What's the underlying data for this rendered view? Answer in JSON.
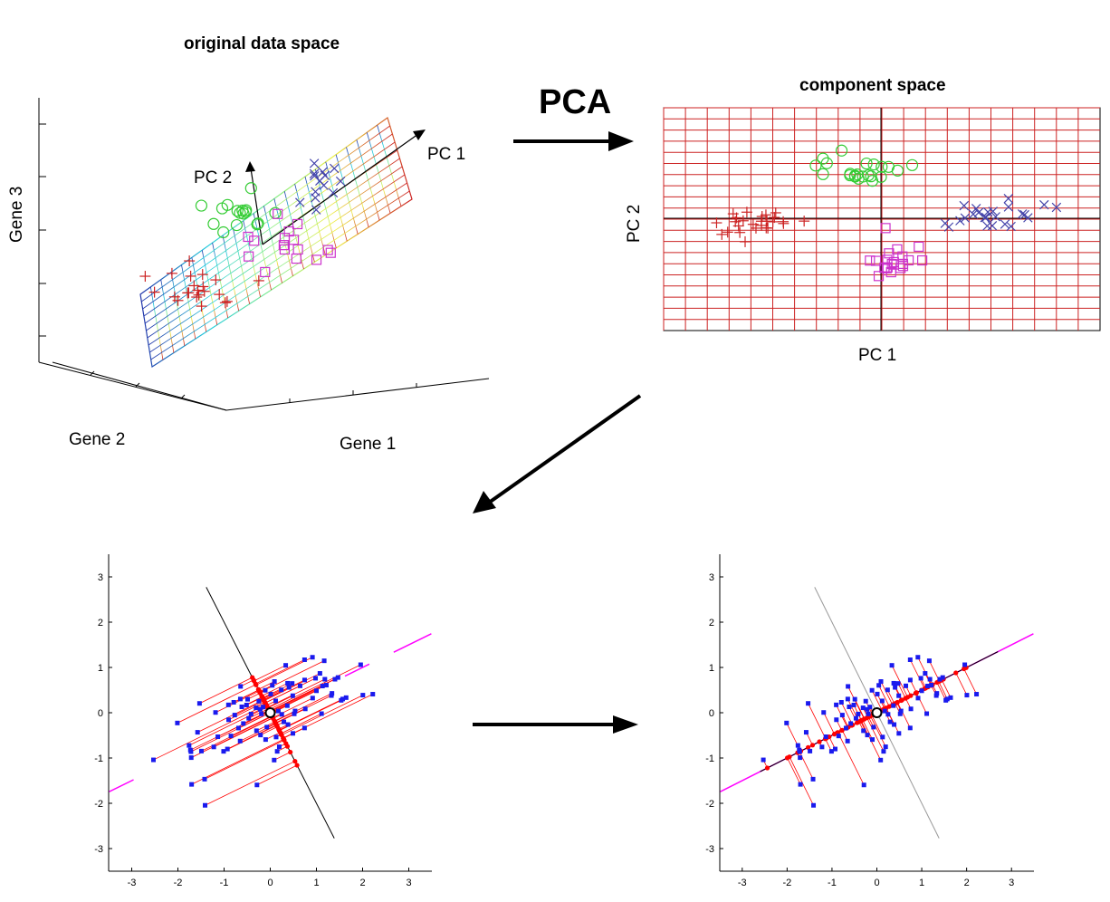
{
  "original": {
    "title": "original data space",
    "gene1": "Gene 1",
    "gene2": "Gene 2",
    "gene3": "Gene 3",
    "pc1": "PC 1",
    "pc2": "PC 2"
  },
  "pca_label": "PCA",
  "component": {
    "title": "component space",
    "xlabel": "PC 1",
    "ylabel": "PC 2"
  },
  "colors": {
    "red": "#cc2222",
    "green": "#33cc33",
    "blue_x": "#4444aa",
    "magenta": "#cc33cc",
    "grid": "#cc2222",
    "points": "#1a1aee",
    "projection": "#ff0000",
    "pc_line": "#ff00ff"
  },
  "chart_data": [
    {
      "type": "scatter",
      "title": "",
      "xlim": [
        -3.5,
        3.5
      ],
      "ylim": [
        -3.5,
        3.5
      ],
      "xticks": [
        "-3",
        "-2",
        "-1",
        "0",
        "1",
        "2",
        "3"
      ],
      "yticks": [
        "3",
        "2",
        "1",
        "0",
        "-1",
        "-2",
        "-3"
      ],
      "projection_axis": "PC 2"
    },
    {
      "type": "scatter",
      "title": "",
      "xlim": [
        -3.5,
        3.5
      ],
      "ylim": [
        -3.5,
        3.5
      ],
      "xticks": [
        "-3",
        "-2",
        "-1",
        "0",
        "1",
        "2",
        "3"
      ],
      "yticks": [
        "3",
        "2",
        "1",
        "0",
        "-1",
        "-2",
        "-3"
      ],
      "projection_axis": "PC 1"
    }
  ]
}
